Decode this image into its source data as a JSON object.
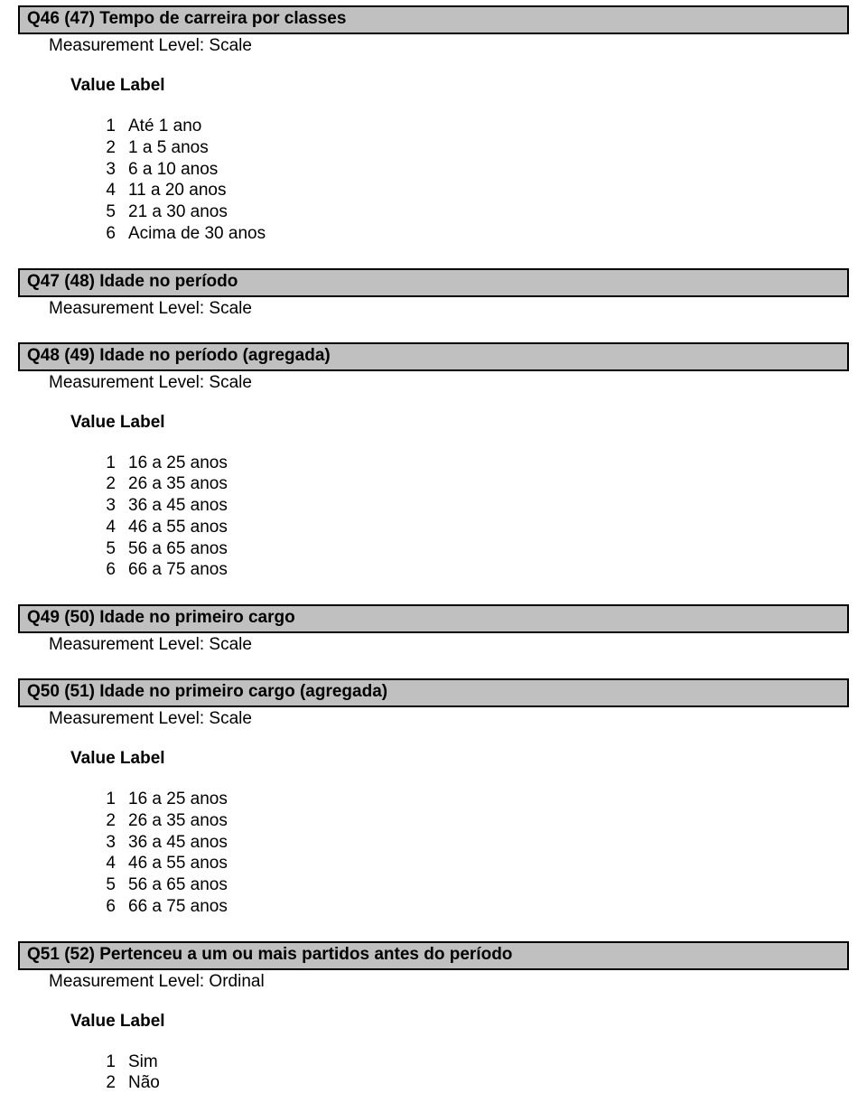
{
  "labels": {
    "measurement_scale": "Measurement Level: Scale",
    "measurement_ordinal": "Measurement Level: Ordinal",
    "value_label": "Value   Label"
  },
  "sections": [
    {
      "title": "Q46 (47) Tempo de carreira por classes",
      "mtype": "scale",
      "showValues": true,
      "values": [
        {
          "n": "1",
          "l": "Até 1 ano"
        },
        {
          "n": "2",
          "l": "1 a 5 anos"
        },
        {
          "n": "3",
          "l": "6 a 10 anos"
        },
        {
          "n": "4",
          "l": "11 a 20 anos"
        },
        {
          "n": "5",
          "l": "21 a 30 anos"
        },
        {
          "n": "6",
          "l": "Acima de 30 anos"
        }
      ]
    },
    {
      "title": "Q47 (48) Idade no período",
      "mtype": "scale",
      "showValues": false
    },
    {
      "title": "Q48 (49) Idade no período (agregada)",
      "mtype": "scale",
      "showValues": true,
      "values": [
        {
          "n": "1",
          "l": "16 a 25 anos"
        },
        {
          "n": "2",
          "l": "26 a 35 anos"
        },
        {
          "n": "3",
          "l": "36 a 45 anos"
        },
        {
          "n": "4",
          "l": "46 a 55 anos"
        },
        {
          "n": "5",
          "l": "56 a 65 anos"
        },
        {
          "n": "6",
          "l": "66 a 75 anos"
        }
      ]
    },
    {
      "title": "Q49 (50) Idade no primeiro cargo",
      "mtype": "scale",
      "showValues": false
    },
    {
      "title": "Q50 (51) Idade no primeiro cargo (agregada)",
      "mtype": "scale",
      "showValues": true,
      "values": [
        {
          "n": "1",
          "l": "16 a 25 anos"
        },
        {
          "n": "2",
          "l": "26 a 35 anos"
        },
        {
          "n": "3",
          "l": "36 a 45 anos"
        },
        {
          "n": "4",
          "l": "46 a 55 anos"
        },
        {
          "n": "5",
          "l": "56 a 65 anos"
        },
        {
          "n": "6",
          "l": "66 a 75 anos"
        }
      ]
    },
    {
      "title": "Q51 (52) Pertenceu a um ou mais partidos antes do período",
      "mtype": "ordinal",
      "showValues": true,
      "values": [
        {
          "n": "1",
          "l": "Sim"
        },
        {
          "n": "2",
          "l": "Não"
        }
      ]
    }
  ]
}
